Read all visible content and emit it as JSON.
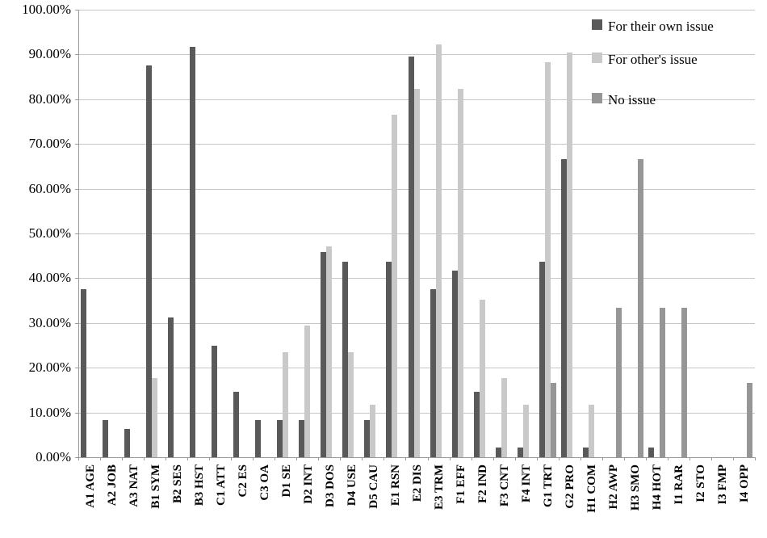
{
  "chart_data": {
    "type": "bar",
    "title": "",
    "xlabel": "",
    "ylabel": "",
    "grid": true,
    "legend_position": "top-right-inside",
    "categories": [
      "A1 AGE",
      "A2 JOB",
      "A3 NAT",
      "B1 SYM",
      "B2 SES",
      "B3 HST",
      "C1 ATT",
      "C2 ES",
      "C3 OA",
      "D1 SE",
      "D2 INT",
      "D3 DOS",
      "D4 USE",
      "D5 CAU",
      "E1 RSN",
      "E2 DIS",
      "E3 TRM",
      "F1 EFF",
      "F2 IND",
      "F3 CNT",
      "F4 INT",
      "G1 TRT",
      "G2 PRO",
      "H1 COM",
      "H2 AWP",
      "H3 SMO",
      "H4 HOT",
      "I1 RAR",
      "I2 STO",
      "I3 FMP",
      "I4 OPP"
    ],
    "series": [
      {
        "name": "For their own issue",
        "color": "#595959",
        "values": [
          37.5,
          8.33,
          6.25,
          87.5,
          31.25,
          91.67,
          25.0,
          14.58,
          8.33,
          8.33,
          8.33,
          45.83,
          43.75,
          8.33,
          43.75,
          89.58,
          37.5,
          41.67,
          14.58,
          2.08,
          2.08,
          43.75,
          66.67,
          2.08,
          0,
          0,
          2.08,
          0,
          0,
          0,
          0
        ]
      },
      {
        "name": "For other's issue",
        "color": "#c9c9c9",
        "values": [
          0,
          0,
          0,
          17.65,
          0,
          0,
          0,
          0,
          0,
          23.53,
          29.41,
          47.06,
          23.53,
          11.76,
          76.47,
          82.35,
          92.31,
          82.35,
          35.29,
          17.65,
          11.76,
          88.24,
          90.48,
          11.76,
          0,
          0,
          0,
          0,
          0,
          0,
          0
        ]
      },
      {
        "name": "No issue",
        "color": "#969696",
        "values": [
          0,
          0,
          0,
          0,
          0,
          0,
          0,
          0,
          0,
          0,
          0,
          0,
          0,
          0,
          0,
          0,
          0,
          0,
          0,
          0,
          0,
          16.67,
          0,
          0,
          33.33,
          66.67,
          33.33,
          33.33,
          0,
          0,
          16.67
        ]
      }
    ],
    "y_axis": {
      "min": 0,
      "max": 100,
      "step": 10,
      "tick_labels": [
        "100.00%",
        "90.00%",
        "80.00%",
        "70.00%",
        "60.00%",
        "50.00%",
        "40.00%",
        "30.00%",
        "20.00%",
        "10.00%",
        "0.00%"
      ]
    }
  },
  "colors": {
    "background": "#ffffff",
    "gridline": "#c6c6c6",
    "axis": "#999999",
    "text": "#000000"
  }
}
